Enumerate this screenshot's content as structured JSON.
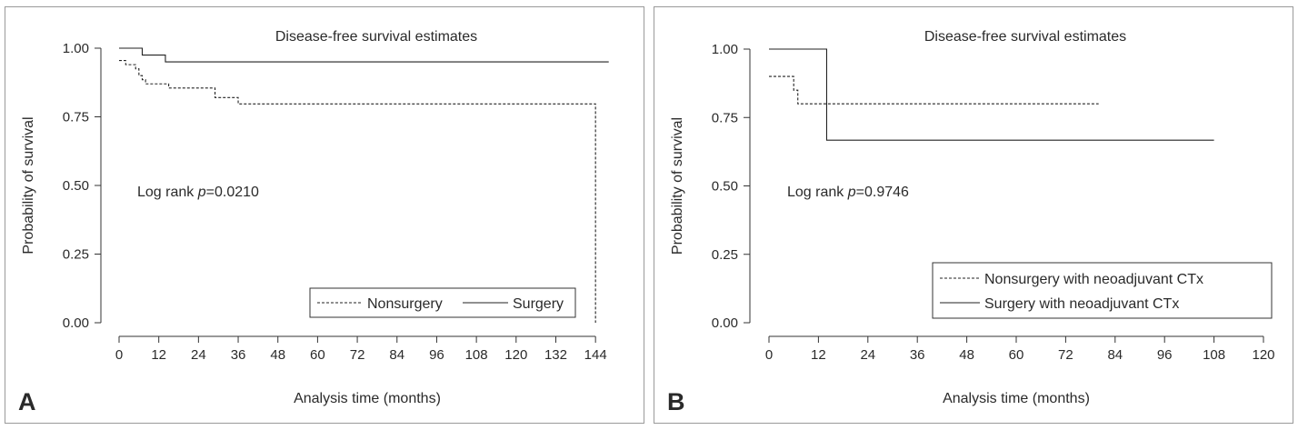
{
  "chart_data": [
    {
      "panel_label": "A",
      "type": "line",
      "title": "Disease-free survival estimates",
      "xlabel": "Analysis time (months)",
      "ylabel": "Probability of survival",
      "xlim": [
        0,
        150
      ],
      "ylim": [
        0,
        1
      ],
      "xticks": [
        0,
        12,
        24,
        36,
        48,
        60,
        72,
        84,
        96,
        108,
        120,
        132,
        144
      ],
      "yticks": [
        0.0,
        0.25,
        0.5,
        0.75,
        1.0
      ],
      "ytick_labels": [
        "0.00",
        "0.25",
        "0.50",
        "0.75",
        "1.00"
      ],
      "annotation": {
        "prefix": "Log rank ",
        "p": "p",
        "value": "=0.0210"
      },
      "grid": false,
      "legend": {
        "placement": "bottom-right",
        "layout": "horizontal"
      },
      "series": [
        {
          "name": "Nonsurgery",
          "line_style": "dashed",
          "x": [
            0,
            1,
            2,
            4,
            5,
            6,
            7,
            8,
            12,
            15,
            20,
            25,
            29,
            35,
            36,
            48,
            60,
            72,
            84,
            96,
            108,
            120,
            132,
            144,
            144
          ],
          "y": [
            0.955,
            0.955,
            0.94,
            0.94,
            0.925,
            0.9,
            0.885,
            0.87,
            0.87,
            0.855,
            0.855,
            0.855,
            0.82,
            0.82,
            0.797,
            0.797,
            0.797,
            0.797,
            0.797,
            0.797,
            0.797,
            0.797,
            0.797,
            0.797,
            0.0
          ]
        },
        {
          "name": "Surgery",
          "line_style": "solid",
          "x": [
            0,
            7,
            14,
            148
          ],
          "y": [
            1.0,
            0.975,
            0.95,
            0.95
          ]
        }
      ]
    },
    {
      "panel_label": "B",
      "type": "line",
      "title": "Disease-free survival estimates",
      "xlabel": "Analysis time (months)",
      "ylabel": "Probability of survival",
      "xlim": [
        0,
        120
      ],
      "ylim": [
        0,
        1
      ],
      "xticks": [
        0,
        12,
        24,
        36,
        48,
        60,
        72,
        84,
        96,
        108,
        120
      ],
      "yticks": [
        0.0,
        0.25,
        0.5,
        0.75,
        1.0
      ],
      "ytick_labels": [
        "0.00",
        "0.25",
        "0.50",
        "0.75",
        "1.00"
      ],
      "annotation": {
        "prefix": "Log rank ",
        "p": "p",
        "value": "=0.9746"
      },
      "grid": false,
      "legend": {
        "placement": "bottom-right",
        "layout": "vertical"
      },
      "series": [
        {
          "name": "Nonsurgery with neoadjuvant CTx",
          "line_style": "dashed",
          "x": [
            0,
            5,
            6,
            7,
            80
          ],
          "y": [
            0.9,
            0.9,
            0.85,
            0.8,
            0.8
          ]
        },
        {
          "name": "Surgery with neoadjuvant CTx",
          "line_style": "solid",
          "x": [
            0,
            14,
            108
          ],
          "y": [
            1.0,
            0.667,
            0.667
          ]
        }
      ]
    }
  ]
}
